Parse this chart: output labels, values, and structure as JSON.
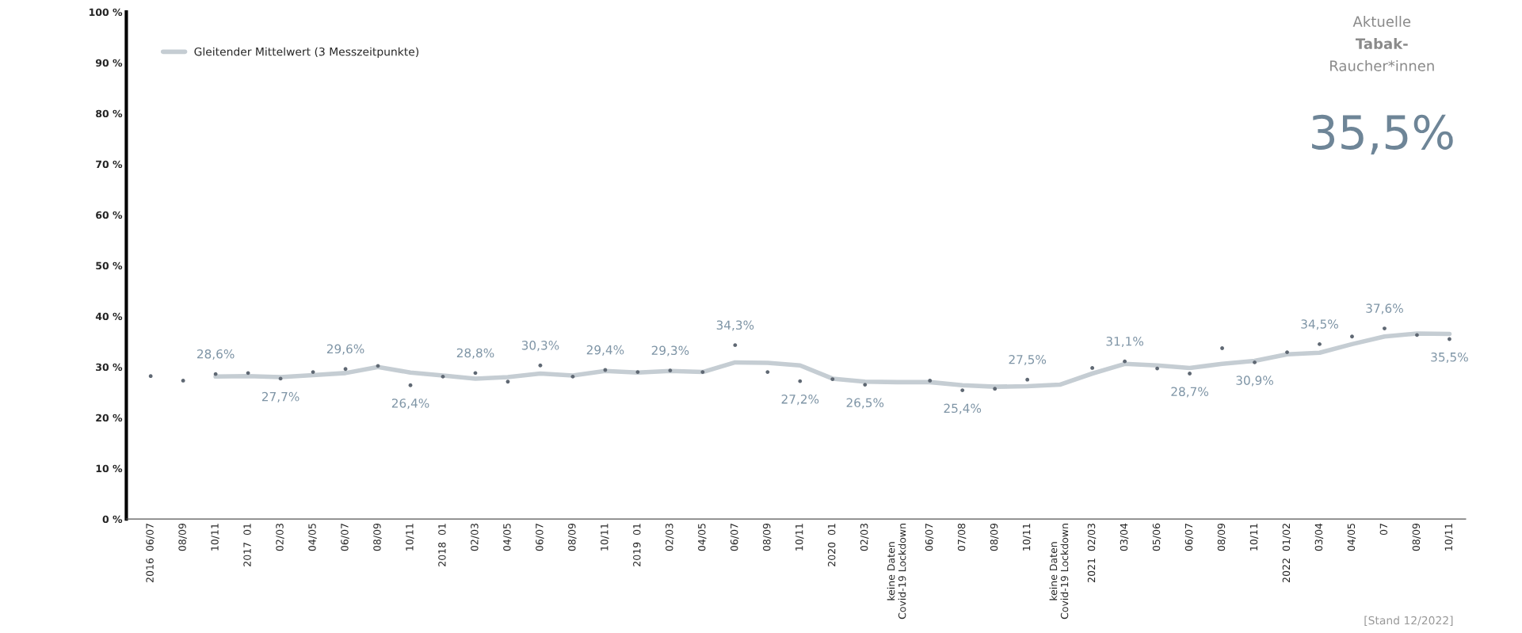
{
  "chart_data": {
    "type": "line",
    "categories": [
      "2016  06/07",
      "08/09",
      "10/11",
      "2017  01",
      "02/03",
      "04/05",
      "06/07",
      "08/09",
      "10/11",
      "2018  01",
      "02/03",
      "04/05",
      "06/07",
      "08/09",
      "10/11",
      "2019  01",
      "02/03",
      "04/05",
      "06/07",
      "08/09",
      "10/11",
      "2020  01",
      "02/03",
      "keine Daten\nCovid-19 Lockdown",
      "06/07",
      "07/08",
      "08/09",
      "10/11",
      "keine Daten\nCovid-19 Lockdown",
      "2021  02/03",
      "03/04",
      "05/06",
      "06/07",
      "08/09",
      "10/11",
      "2022  01/02",
      "03/04",
      "04/05",
      "07",
      "08/09",
      "10/11"
    ],
    "series": [
      {
        "type": "scatter",
        "color": "#5f6873",
        "values": [
          28.2,
          27.3,
          28.6,
          28.8,
          27.7,
          29.0,
          29.6,
          30.2,
          26.4,
          28.1,
          28.8,
          27.1,
          30.3,
          28.1,
          29.4,
          29.0,
          29.3,
          29.0,
          34.3,
          29.0,
          27.2,
          27.6,
          26.5,
          null,
          27.3,
          25.4,
          25.7,
          27.5,
          null,
          29.8,
          31.1,
          29.7,
          28.7,
          33.7,
          30.9,
          32.9,
          34.5,
          36.0,
          37.6,
          36.3,
          35.5
        ],
        "value_labels": [
          null,
          null,
          "28,6%",
          null,
          "27,7%",
          null,
          "29,6%",
          null,
          "26,4%",
          null,
          "28,8%",
          null,
          "30,3%",
          null,
          "29,4%",
          null,
          "29,3%",
          null,
          "34,3%",
          null,
          "27,2%",
          null,
          "26,5%",
          null,
          null,
          "25,4%",
          null,
          "27,5%",
          null,
          null,
          "31,1%",
          null,
          "28,7%",
          null,
          "30,9%",
          null,
          "34,5%",
          null,
          "37,6%",
          null,
          "35,5%"
        ]
      },
      {
        "name": "Gleitender Mittelwert (3 Messzeitpunkte)",
        "color": "#c5cdd3",
        "values": [
          null,
          null,
          28.1,
          28.2,
          28.0,
          28.4,
          28.8,
          30.0,
          28.9,
          28.3,
          27.7,
          28.0,
          28.7,
          28.3,
          29.2,
          28.9,
          29.2,
          29.0,
          30.9,
          30.8,
          30.3,
          27.7,
          27.1,
          27.0,
          27.0,
          26.4,
          26.1,
          26.2,
          26.5,
          28.7,
          30.6,
          30.3,
          29.8,
          30.6,
          31.2,
          32.5,
          32.8,
          34.5,
          36.0,
          36.6,
          36.5
        ]
      }
    ],
    "ylim": [
      0,
      100
    ],
    "yticks": [
      {
        "value": 0,
        "label": "0 %"
      },
      {
        "value": 10,
        "label": "10 %"
      },
      {
        "value": 20,
        "label": "20 %"
      },
      {
        "value": 30,
        "label": "30 %"
      },
      {
        "value": 40,
        "label": "40 %"
      },
      {
        "value": 50,
        "label": "50 %"
      },
      {
        "value": 60,
        "label": "60 %"
      },
      {
        "value": 70,
        "label": "70 %"
      },
      {
        "value": 80,
        "label": "80 %"
      },
      {
        "value": 90,
        "label": "90 %"
      },
      {
        "value": 100,
        "label": "100 %"
      }
    ],
    "grid": false,
    "legend": "top left",
    "annotations": [
      "Aktuelle",
      "Tabak-",
      "Raucher*innen",
      "35,5%",
      "[Stand 12/2022]"
    ]
  }
}
